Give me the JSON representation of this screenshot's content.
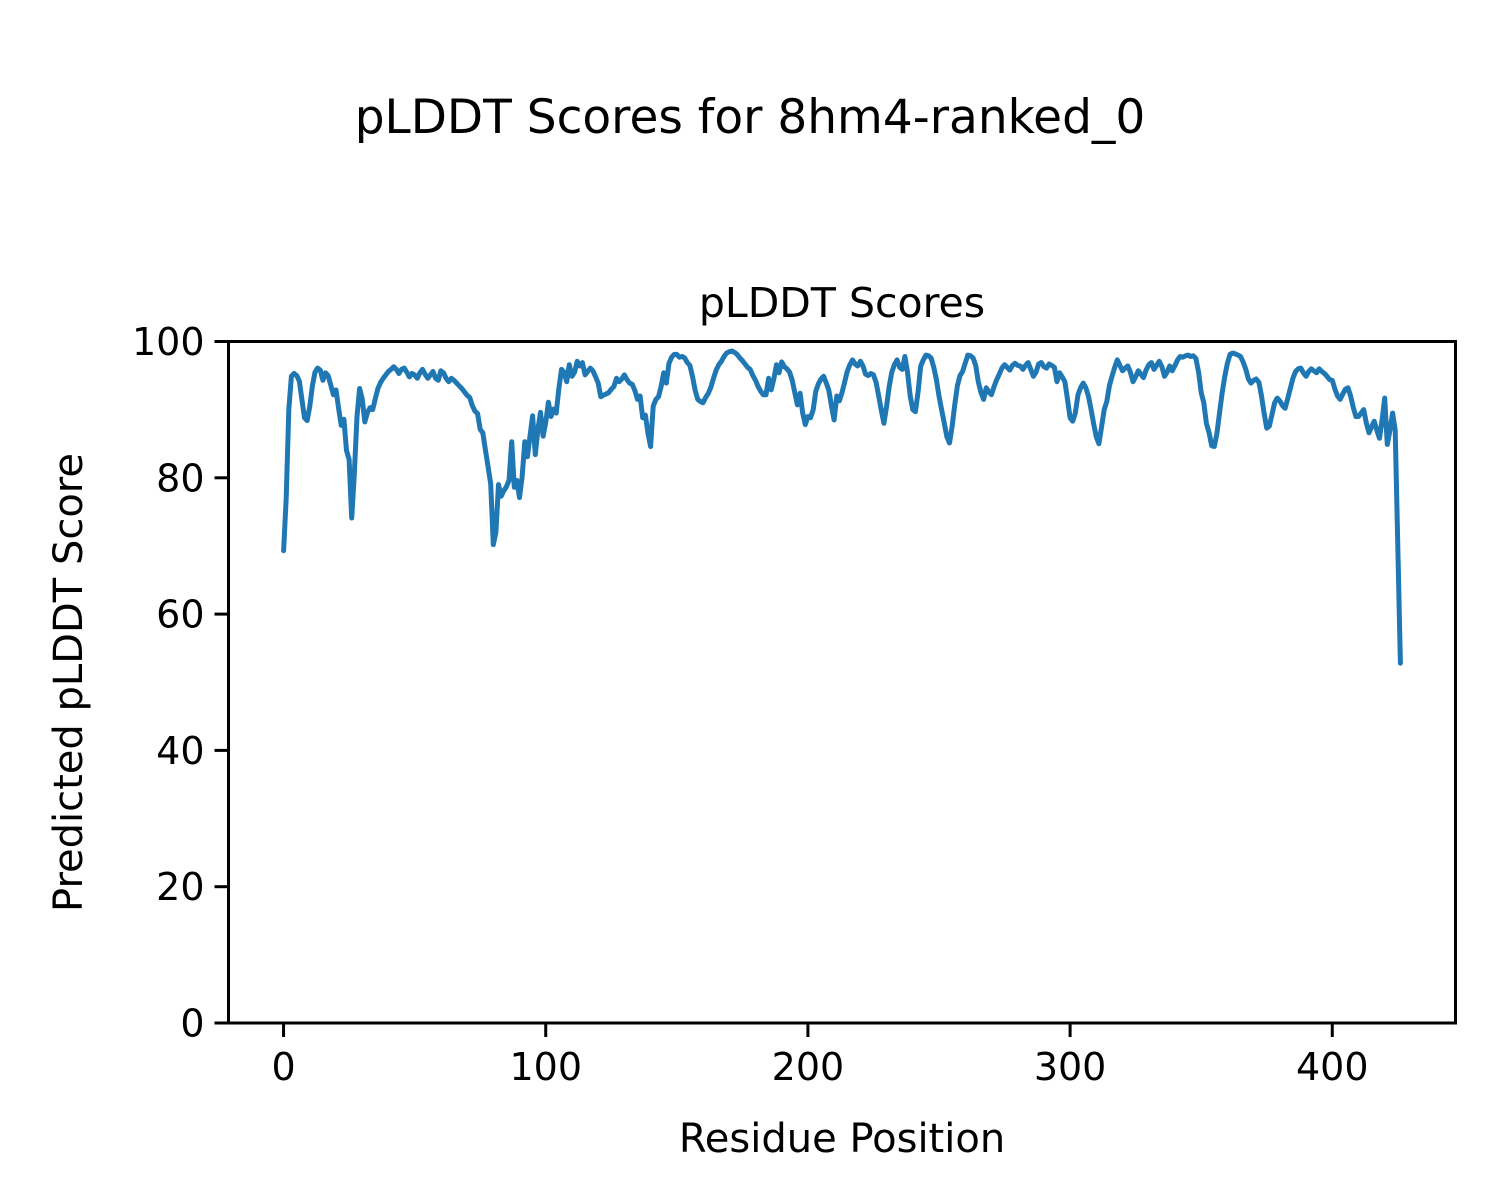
{
  "figure": {
    "suptitle": "pLDDT Scores for 8hm4-ranked_0"
  },
  "chart_data": {
    "type": "line",
    "title": "pLDDT Scores",
    "xlabel": "Residue Position",
    "ylabel": "Predicted pLDDT Score",
    "xlim": [
      -21,
      447
    ],
    "ylim": [
      0,
      100
    ],
    "xticks": [
      0,
      100,
      200,
      300,
      400
    ],
    "yticks": [
      0,
      20,
      40,
      60,
      80,
      100
    ],
    "grid": false,
    "legend": "none",
    "line_color": "#1f77b4",
    "line_width": 5,
    "background": "#ffffff",
    "series": [
      {
        "name": "pLDDT",
        "x_start": 0,
        "x_step": 1,
        "values": [
          69.3,
          77,
          90,
          94.9,
          95.3,
          95,
          94.2,
          91.5,
          88.8,
          88.4,
          90.5,
          93.5,
          95.5,
          96.1,
          95.8,
          94.3,
          95.4,
          95,
          93.6,
          92.2,
          92.9,
          90.2,
          87.7,
          88.6,
          84,
          82.7,
          74.1,
          80.5,
          89,
          93.1,
          91.6,
          88.2,
          89.6,
          90.3,
          90,
          91.6,
          93.1,
          94,
          94.6,
          95.1,
          95.6,
          95.9,
          96.3,
          95.9,
          95.3,
          95.9,
          96.1,
          95.5,
          94.8,
          95.3,
          95.1,
          94.6,
          95.4,
          95.9,
          95.2,
          94.6,
          95.1,
          95.6,
          94.6,
          94.3,
          95.7,
          95.4,
          94.6,
          94.1,
          94.6,
          94.3,
          93.9,
          93.5,
          93.1,
          92.6,
          92.1,
          91.8,
          90.6,
          89.8,
          89.4,
          87.1,
          86.6,
          84.1,
          81.6,
          79.1,
          70.2,
          72,
          79,
          77.3,
          78.1,
          78.7,
          79.6,
          85.3,
          78.6,
          79.6,
          77.1,
          80.1,
          85.3,
          83.1,
          86.1,
          89.1,
          83.4,
          87.1,
          89.6,
          86.1,
          88.1,
          91.1,
          89,
          90.1,
          89.5,
          93,
          95.9,
          95.5,
          94.1,
          96.6,
          94.9,
          95.5,
          97.1,
          96.4,
          96.9,
          95.1,
          95.6,
          96.1,
          95.7,
          94.8,
          93.9,
          91.9,
          92.1,
          92.3,
          92.5,
          93,
          93.4,
          94.6,
          94.1,
          94.5,
          95.1,
          94.4,
          93.9,
          93.7,
          92.8,
          91.5,
          92,
          88.8,
          89.2,
          86.5,
          84.6,
          90.5,
          91.5,
          91.9,
          93.4,
          95.4,
          93.9,
          96.8,
          97.7,
          98.1,
          98.1,
          97.7,
          97.8,
          97.6,
          96.9,
          96.5,
          94.8,
          92.8,
          91.5,
          91.2,
          91,
          91.8,
          92.4,
          93.3,
          94.6,
          95.8,
          96.6,
          97.1,
          97.8,
          98.3,
          98.5,
          98.6,
          98.4,
          98.1,
          97.6,
          97.2,
          96.7,
          96.2,
          95.9,
          95,
          94.3,
          93.4,
          92.7,
          92.2,
          92.2,
          94.6,
          92.9,
          94.5,
          96.6,
          95.4,
          97,
          96.3,
          96,
          95.5,
          94.3,
          92.5,
          90.7,
          92.4,
          89.5,
          87.8,
          89,
          88.8,
          90,
          92.7,
          93.8,
          94.5,
          94.9,
          93.9,
          92.8,
          90.5,
          88.5,
          92,
          91.3,
          92.5,
          94,
          95.6,
          96.6,
          97.3,
          96.7,
          96.4,
          97.1,
          96.4,
          95.2,
          95,
          95.3,
          95.1,
          94,
          92,
          89.9,
          88,
          90.5,
          93.4,
          95.5,
          96.6,
          97.3,
          96.2,
          95.9,
          97.8,
          95.5,
          92,
          90,
          89.7,
          92.5,
          96.4,
          97.3,
          98,
          97.9,
          97.6,
          96.2,
          94.4,
          92,
          90,
          88,
          86,
          85.1,
          87.5,
          90.7,
          93.5,
          95,
          95.6,
          96.8,
          98,
          97.9,
          97.6,
          96.5,
          94.1,
          92.5,
          91.5,
          93.2,
          92.6,
          92.2,
          93.4,
          94.4,
          95.2,
          96.1,
          96.6,
          96.2,
          95.8,
          96.5,
          96.8,
          96.5,
          96.4,
          95.9,
          96.5,
          96.9,
          95.9,
          94.9,
          95.5,
          96.7,
          96.9,
          96.3,
          96.1,
          96.7,
          96.5,
          96.2,
          94.1,
          95.4,
          94.8,
          94.1,
          91.5,
          88.8,
          88.3,
          89.5,
          92.2,
          93.2,
          93.9,
          93.2,
          92,
          90,
          87.9,
          86,
          85,
          87.5,
          90,
          91.2,
          93.5,
          94.9,
          96.2,
          97.3,
          96.5,
          95.7,
          96.1,
          96.4,
          95.5,
          94.1,
          94.8,
          95.7,
          95.2,
          94.7,
          95.8,
          96.6,
          96.9,
          95.9,
          96.5,
          97.1,
          96.3,
          94.9,
          95.5,
          96.4,
          95.7,
          96.5,
          97.3,
          97.8,
          97.7,
          97.9,
          98,
          97.8,
          97.9,
          97.5,
          95.5,
          92.5,
          91,
          88,
          86.6,
          84.7,
          84.6,
          86.5,
          89.5,
          92.5,
          94.9,
          96.8,
          98.1,
          98.3,
          98.2,
          98,
          97.8,
          97,
          95.9,
          94.5,
          93.9,
          94.3,
          94.5,
          94,
          92,
          89.5,
          87.3,
          87.6,
          89.3,
          91,
          91.7,
          91.3,
          90.6,
          90.2,
          91.6,
          93.1,
          94.6,
          95.6,
          96,
          96.1,
          95.4,
          94.9,
          95.6,
          96,
          95.7,
          95.4,
          96,
          95.6,
          95.3,
          94.9,
          94.4,
          94.3,
          93,
          92,
          91.5,
          92.3,
          93,
          93.2,
          92,
          90.3,
          89,
          89,
          89.5,
          90,
          88,
          86.6,
          87.5,
          88.3,
          87,
          85.8,
          88.5,
          91.7,
          84.9,
          87,
          89.5,
          87,
          70,
          52.8
        ]
      }
    ]
  }
}
